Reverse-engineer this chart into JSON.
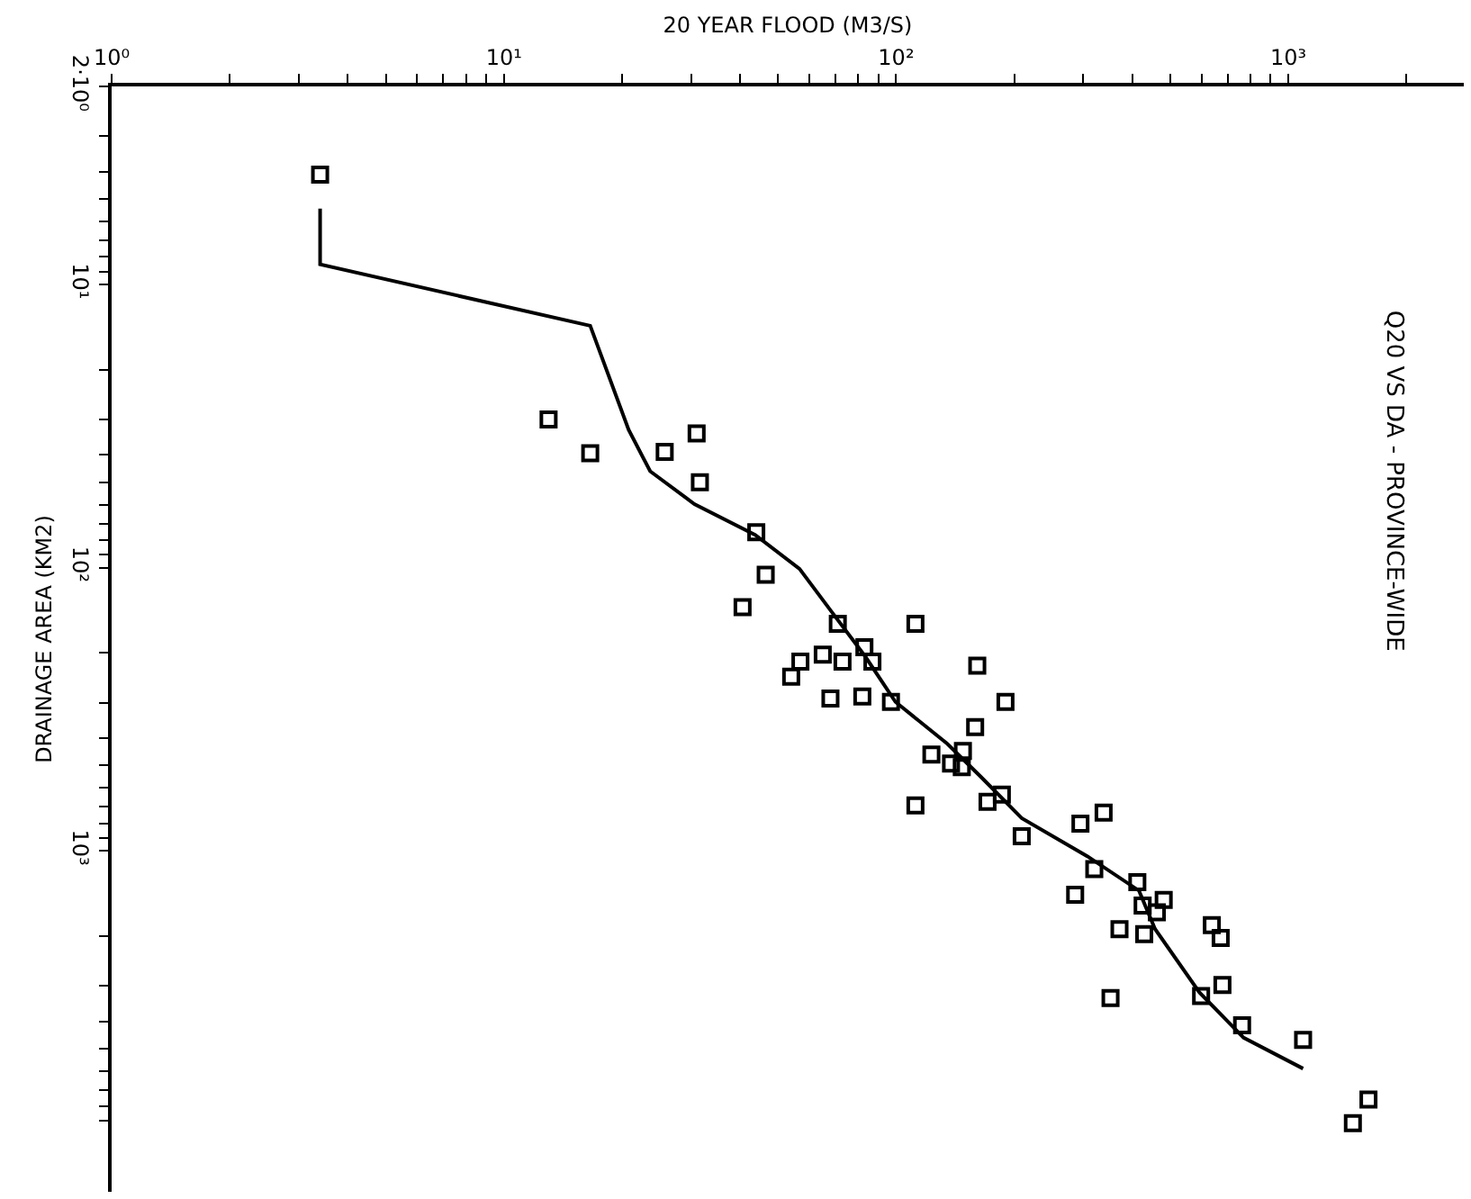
{
  "chart_data": {
    "type": "scatter",
    "title": "Q20 VS DA - PROVINCE-WIDE",
    "xlabel": "20 YEAR FLOOD (M3/S)",
    "ylabel": "DRAINAGE AREA (KM2)",
    "log": "xy",
    "grid": false,
    "xlim": [
      1,
      2800
    ],
    "ylim": [
      16000,
      2
    ],
    "xticks": [
      {
        "value": 1,
        "label": "10⁰"
      },
      {
        "value": 2,
        "label": null
      },
      {
        "value": 3,
        "label": null
      },
      {
        "value": 4,
        "label": null
      },
      {
        "value": 5,
        "label": null
      },
      {
        "value": 6,
        "label": null
      },
      {
        "value": 7,
        "label": null
      },
      {
        "value": 8,
        "label": null
      },
      {
        "value": 9,
        "label": null
      },
      {
        "value": 10,
        "label": "10¹"
      },
      {
        "value": 20,
        "label": null
      },
      {
        "value": 30,
        "label": null
      },
      {
        "value": 40,
        "label": null
      },
      {
        "value": 50,
        "label": null
      },
      {
        "value": 60,
        "label": null
      },
      {
        "value": 70,
        "label": null
      },
      {
        "value": 80,
        "label": null
      },
      {
        "value": 90,
        "label": null
      },
      {
        "value": 100,
        "label": "10²"
      },
      {
        "value": 200,
        "label": null
      },
      {
        "value": 300,
        "label": null
      },
      {
        "value": 400,
        "label": null
      },
      {
        "value": 500,
        "label": null
      },
      {
        "value": 600,
        "label": null
      },
      {
        "value": 700,
        "label": null
      },
      {
        "value": 800,
        "label": null
      },
      {
        "value": 900,
        "label": null
      },
      {
        "value": 1000,
        "label": "10³"
      },
      {
        "value": 2000,
        "label": null
      }
    ],
    "yticks": [
      {
        "value": 2,
        "label": "2·10⁰"
      },
      {
        "value": 3,
        "label": null
      },
      {
        "value": 4,
        "label": null
      },
      {
        "value": 5,
        "label": null
      },
      {
        "value": 6,
        "label": null
      },
      {
        "value": 7,
        "label": null
      },
      {
        "value": 8,
        "label": null
      },
      {
        "value": 9,
        "label": null
      },
      {
        "value": 10,
        "label": "10¹"
      },
      {
        "value": 20,
        "label": null
      },
      {
        "value": 30,
        "label": null
      },
      {
        "value": 40,
        "label": null
      },
      {
        "value": 50,
        "label": null
      },
      {
        "value": 60,
        "label": null
      },
      {
        "value": 70,
        "label": null
      },
      {
        "value": 80,
        "label": null
      },
      {
        "value": 90,
        "label": null
      },
      {
        "value": 100,
        "label": "10²"
      },
      {
        "value": 200,
        "label": null
      },
      {
        "value": 300,
        "label": null
      },
      {
        "value": 400,
        "label": null
      },
      {
        "value": 500,
        "label": null
      },
      {
        "value": 600,
        "label": null
      },
      {
        "value": 700,
        "label": null
      },
      {
        "value": 800,
        "label": null
      },
      {
        "value": 900,
        "label": null
      },
      {
        "value": 1000,
        "label": "10³"
      },
      {
        "value": 2000,
        "label": null
      },
      {
        "value": 3000,
        "label": null
      },
      {
        "value": 4000,
        "label": null
      },
      {
        "value": 5000,
        "label": null
      },
      {
        "value": 6000,
        "label": null
      },
      {
        "value": 7000,
        "label": null
      },
      {
        "value": 8000,
        "label": null
      },
      {
        "value": 9000,
        "label": null
      }
    ],
    "series": [
      {
        "marker": "square",
        "color": "#000000",
        "x": [
          3.4,
          13,
          16.6,
          25.7,
          31,
          31.6,
          44,
          46.5,
          40.6,
          71,
          112,
          83,
          87,
          65,
          73,
          57,
          54,
          68,
          82,
          97,
          161,
          190,
          159,
          123,
          148,
          138,
          147,
          112,
          186,
          171,
          209,
          295,
          338,
          320,
          286,
          412,
          425,
          481,
          462,
          371,
          429,
          638,
          672,
          679,
          599,
          352,
          762,
          1090,
          1600,
          1460
        ],
        "values": [
          4.1,
          30,
          39.5,
          39,
          33.6,
          50,
          75,
          106,
          138,
          158,
          158,
          191,
          215,
          203,
          215,
          215,
          243,
          290,
          285,
          298,
          222,
          298,
          366,
          457,
          444,
          492,
          507,
          691,
          633,
          671,
          889,
          802,
          733,
          1160,
          1430,
          1290,
          1560,
          1490,
          1650,
          1890,
          1970,
          1830,
          2030,
          2980,
          3260,
          3310,
          4130,
          4650,
          7550,
          9160
        ]
      },
      {
        "type": "line",
        "marker": "none",
        "line_style": "solid",
        "color": "#000000",
        "x": [
          3.4,
          3.4,
          16.6,
          20.8,
          23.6,
          30.6,
          43.7,
          56.7,
          68.4,
          83.4,
          99.6,
          135,
          164,
          209,
          307,
          416,
          457,
          593,
          769,
          1090
        ],
        "values": [
          5.4,
          8.5,
          14,
          32.6,
          45.7,
          59.7,
          76.7,
          101,
          143,
          206,
          298,
          419,
          546,
          767,
          1045,
          1383,
          1888,
          3162,
          4571,
          5875
        ]
      }
    ]
  }
}
